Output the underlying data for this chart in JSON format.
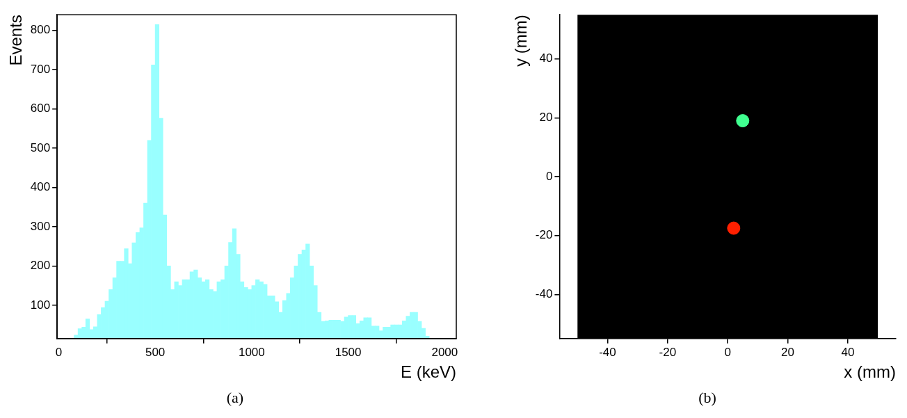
{
  "chart_data": [
    {
      "type": "histogram",
      "ylabel": "Events",
      "xlabel": "E (keV)",
      "color": "#99ffff",
      "bins": [
        0,
        20,
        40,
        60,
        80,
        100,
        120,
        140,
        160,
        180,
        200,
        220,
        240,
        260,
        280,
        300,
        320,
        340,
        360,
        380,
        400,
        420,
        440,
        460,
        480,
        500,
        520,
        540,
        560,
        580,
        600,
        620,
        640,
        660,
        680,
        700,
        720,
        740,
        760,
        780,
        800,
        820,
        840,
        860,
        880,
        900,
        920,
        940,
        960,
        980,
        1000,
        1020,
        1040,
        1060,
        1080,
        1100,
        1120,
        1140,
        1160,
        1180,
        1200,
        1220,
        1240,
        1260,
        1280,
        1300,
        1320,
        1340,
        1360,
        1380,
        1400,
        1420,
        1440,
        1460,
        1480,
        1500,
        1520,
        1540,
        1560,
        1580,
        1600,
        1620,
        1640,
        1660,
        1680,
        1700,
        1720,
        1740,
        1760,
        1780,
        1800,
        1820,
        1840,
        1860,
        1880,
        1900,
        1920,
        1940,
        1960,
        1980,
        2000,
        2020,
        2040,
        2060
      ],
      "values": [
        null,
        null,
        null,
        null,
        24,
        40,
        44,
        65,
        38,
        45,
        76,
        94,
        110,
        140,
        170,
        212,
        212,
        244,
        206,
        259,
        285,
        297,
        360,
        520,
        712,
        815,
        576,
        330,
        200,
        140,
        160,
        150,
        165,
        165,
        185,
        190,
        170,
        160,
        165,
        140,
        135,
        160,
        165,
        200,
        260,
        295,
        230,
        160,
        145,
        140,
        150,
        165,
        160,
        153,
        124,
        124,
        109,
        82,
        112,
        130,
        170,
        200,
        230,
        241,
        256,
        200,
        150,
        82,
        59,
        60,
        62,
        62,
        62,
        59,
        70,
        74,
        74,
        53,
        60,
        68,
        68,
        47,
        47,
        35,
        44,
        44,
        50,
        50,
        50,
        60,
        72,
        82,
        82,
        59,
        41,
        21,
        null,
        null,
        null,
        null,
        null,
        null,
        null
      ],
      "xlim": [
        -8,
        2060
      ],
      "ylim": [
        15,
        840
      ],
      "xticks": [
        0,
        500,
        1000,
        1500,
        2000
      ],
      "yticks": [
        100,
        200,
        300,
        400,
        500,
        600,
        700,
        800
      ],
      "grid": false,
      "legend": false,
      "annotations": [
        "(a)"
      ]
    },
    {
      "type": "scatter",
      "xlabel": "x (mm)",
      "ylabel": "y (mm)",
      "x": [
        5,
        2
      ],
      "values": [
        19,
        -17.5
      ],
      "colors": [
        "#40ff90",
        "#ff2000"
      ],
      "marker": "circle",
      "xlim": [
        -56,
        56
      ],
      "ylim": [
        -55,
        55
      ],
      "xticks": [
        -40,
        -20,
        0,
        20,
        40
      ],
      "yticks": [
        -40,
        -20,
        0,
        20,
        40
      ],
      "bands": [
        {
          "axis": "x",
          "from": -50,
          "to": 50,
          "color": "#000000"
        }
      ],
      "grid": false,
      "legend": false,
      "annotations": [
        "(b)"
      ]
    }
  ]
}
